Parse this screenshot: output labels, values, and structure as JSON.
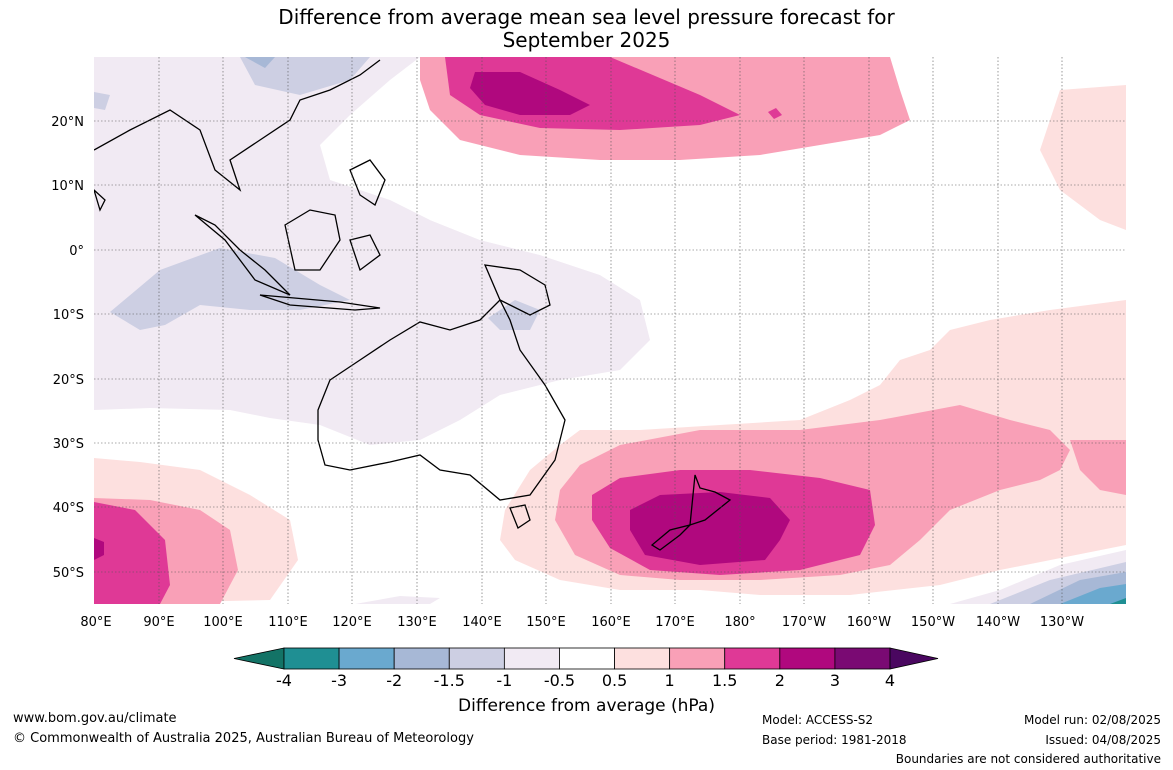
{
  "title_line1": "Difference from average mean sea level pressure forecast for",
  "title_line2": "September 2025",
  "lat_labels": [
    "20°N",
    "10°N",
    "0°",
    "10°S",
    "20°S",
    "30°S",
    "40°S",
    "50°S"
  ],
  "lon_labels": [
    "80°E",
    "90°E",
    "100°E",
    "110°E",
    "120°E",
    "130°E",
    "140°E",
    "150°E",
    "160°E",
    "170°E",
    "180°",
    "170°W",
    "160°W",
    "150°W",
    "140°W",
    "130°W"
  ],
  "colorbar": {
    "title": "Difference from average (hPa)",
    "ticks": [
      "-4",
      "-3",
      "-2",
      "-1.5",
      "-1",
      "-0.5",
      "0.5",
      "1",
      "1.5",
      "2",
      "3",
      "4"
    ],
    "colors": [
      "#1f8f93",
      "#6aa9cf",
      "#a7b8d6",
      "#cdcfe3",
      "#f1eaf3",
      "#ffffff",
      "#fde0df",
      "#f9a0b7",
      "#df3996",
      "#b0087e",
      "#7a0a73"
    ],
    "low_extend_color": "#137366",
    "high_extend_color": "#4a0760"
  },
  "footer": {
    "website": "www.bom.gov.au/climate",
    "copyright": "© Commonwealth of Australia 2025, Australian Bureau of Meteorology",
    "model": "Model: ACCESS-S2",
    "base_period": "Base period: 1981-2018",
    "model_run": "Model run: 02/08/2025",
    "issued": "Issued: 04/08/2025",
    "disclaimer": "Boundaries are not considered authoritative"
  }
}
